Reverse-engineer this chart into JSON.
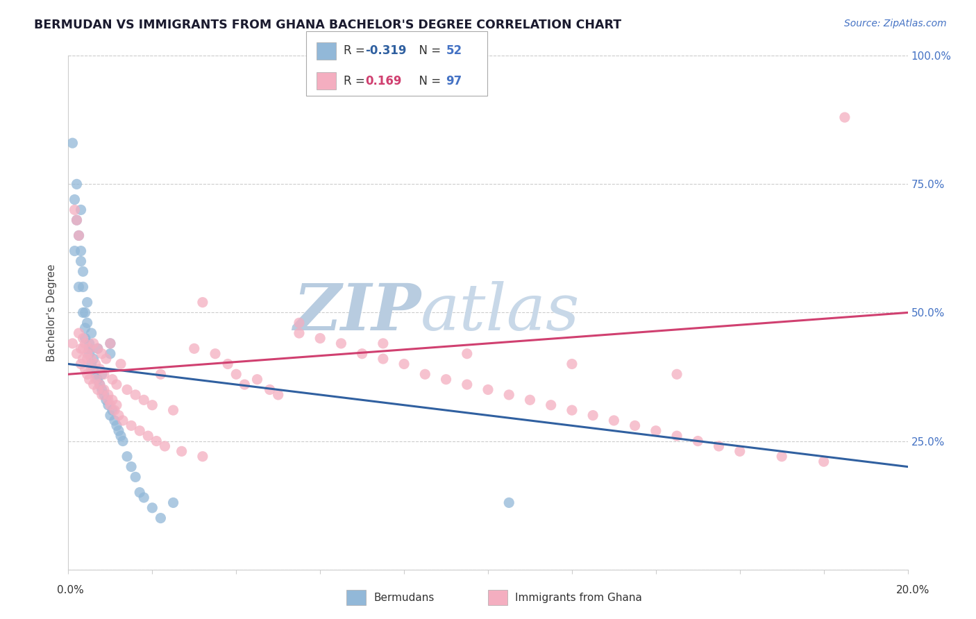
{
  "title": "BERMUDAN VS IMMIGRANTS FROM GHANA BACHELOR'S DEGREE CORRELATION CHART",
  "source_text": "Source: ZipAtlas.com",
  "ylabel": "Bachelor's Degree",
  "xlim": [
    0.0,
    20.0
  ],
  "ylim": [
    0.0,
    100.0
  ],
  "legend_blue_r": "-0.319",
  "legend_blue_n": "52",
  "legend_pink_r": "0.169",
  "legend_pink_n": "97",
  "blue_color": "#92b8d8",
  "pink_color": "#f4aec0",
  "trendline_blue_color": "#3060a0",
  "trendline_pink_color": "#d04070",
  "watermark_color": "#d0dce8",
  "blue_scatter_x": [
    0.1,
    0.15,
    0.2,
    0.2,
    0.25,
    0.3,
    0.3,
    0.3,
    0.35,
    0.35,
    0.4,
    0.4,
    0.4,
    0.45,
    0.45,
    0.5,
    0.5,
    0.5,
    0.55,
    0.55,
    0.6,
    0.6,
    0.65,
    0.7,
    0.7,
    0.75,
    0.8,
    0.8,
    0.85,
    0.9,
    0.95,
    1.0,
    1.0,
    1.0,
    1.05,
    1.1,
    1.15,
    1.2,
    1.25,
    1.3,
    1.4,
    1.5,
    1.6,
    1.7,
    1.8,
    2.0,
    2.2,
    2.5,
    0.15,
    0.25,
    0.35,
    10.5
  ],
  "blue_scatter_y": [
    83,
    72,
    68,
    75,
    65,
    70,
    62,
    60,
    55,
    58,
    50,
    47,
    45,
    52,
    48,
    43,
    44,
    42,
    46,
    40,
    41,
    39,
    38,
    43,
    37,
    36,
    35,
    38,
    34,
    33,
    32,
    44,
    42,
    30,
    31,
    29,
    28,
    27,
    26,
    25,
    22,
    20,
    18,
    15,
    14,
    12,
    10,
    13,
    62,
    55,
    50,
    13
  ],
  "pink_scatter_x": [
    0.1,
    0.15,
    0.2,
    0.2,
    0.25,
    0.3,
    0.3,
    0.35,
    0.35,
    0.4,
    0.4,
    0.45,
    0.45,
    0.5,
    0.5,
    0.55,
    0.6,
    0.6,
    0.65,
    0.7,
    0.7,
    0.75,
    0.8,
    0.8,
    0.85,
    0.9,
    0.95,
    1.0,
    1.0,
    1.05,
    1.1,
    1.15,
    1.2,
    1.25,
    1.3,
    1.4,
    1.5,
    1.6,
    1.7,
    1.8,
    1.9,
    2.0,
    2.1,
    2.2,
    2.3,
    2.5,
    2.7,
    3.0,
    3.2,
    3.5,
    3.8,
    4.0,
    4.2,
    4.5,
    4.8,
    5.0,
    5.5,
    6.0,
    6.5,
    7.0,
    7.5,
    8.0,
    8.5,
    9.0,
    9.5,
    10.0,
    10.5,
    11.0,
    11.5,
    12.0,
    12.5,
    13.0,
    13.5,
    14.0,
    14.5,
    15.0,
    15.5,
    16.0,
    17.0,
    18.0,
    0.25,
    0.35,
    0.45,
    0.55,
    0.65,
    0.75,
    0.85,
    0.95,
    1.05,
    1.15,
    3.2,
    5.5,
    7.5,
    9.5,
    12.0,
    14.5,
    18.5
  ],
  "pink_scatter_y": [
    44,
    70,
    42,
    68,
    65,
    43,
    40,
    45,
    41,
    44,
    39,
    42,
    38,
    43,
    37,
    41,
    44,
    36,
    40,
    43,
    35,
    39,
    42,
    34,
    38,
    41,
    33,
    44,
    32,
    37,
    31,
    36,
    30,
    40,
    29,
    35,
    28,
    34,
    27,
    33,
    26,
    32,
    25,
    38,
    24,
    31,
    23,
    43,
    22,
    42,
    40,
    38,
    36,
    37,
    35,
    34,
    48,
    45,
    44,
    42,
    41,
    40,
    38,
    37,
    36,
    35,
    34,
    33,
    32,
    31,
    30,
    29,
    28,
    27,
    26,
    25,
    24,
    23,
    22,
    21,
    46,
    43,
    41,
    39,
    37,
    36,
    35,
    34,
    33,
    32,
    52,
    46,
    44,
    42,
    40,
    38,
    88
  ]
}
